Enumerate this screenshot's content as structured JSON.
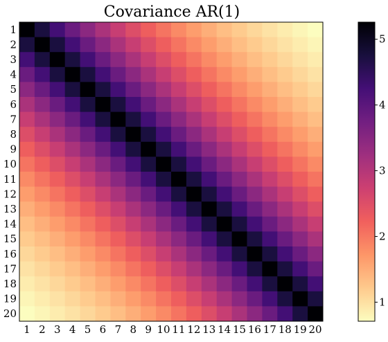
{
  "chart_data": {
    "type": "heatmap",
    "title": "Covariance AR(1)",
    "xlabel": "",
    "ylabel": "",
    "x_ticks": [
      "1",
      "2",
      "3",
      "4",
      "5",
      "6",
      "7",
      "8",
      "9",
      "10",
      "11",
      "12",
      "13",
      "14",
      "15",
      "16",
      "17",
      "18",
      "19",
      "20"
    ],
    "y_ticks": [
      "1",
      "2",
      "3",
      "4",
      "5",
      "6",
      "7",
      "8",
      "9",
      "10",
      "11",
      "12",
      "13",
      "14",
      "15",
      "16",
      "17",
      "18",
      "19",
      "20"
    ],
    "n": 20,
    "diagonal_value": 5.26,
    "rho": 0.9,
    "values_rule": "value[i][j] = diagonal_value * rho^|i-j|",
    "colorbar": {
      "range": [
        0.71,
        5.26
      ],
      "ticks": [
        "1",
        "2",
        "3",
        "4",
        "5"
      ],
      "tick_values": [
        1,
        2,
        3,
        4,
        5
      ]
    },
    "colormap": "magma",
    "colormap_stops": [
      "#000004",
      "#180f3d",
      "#440f76",
      "#721f81",
      "#9e2f7f",
      "#cd4071",
      "#f1605d",
      "#fd9668",
      "#feca8d",
      "#fcfdbf"
    ],
    "grid": false,
    "legend": "colorbar-right"
  }
}
